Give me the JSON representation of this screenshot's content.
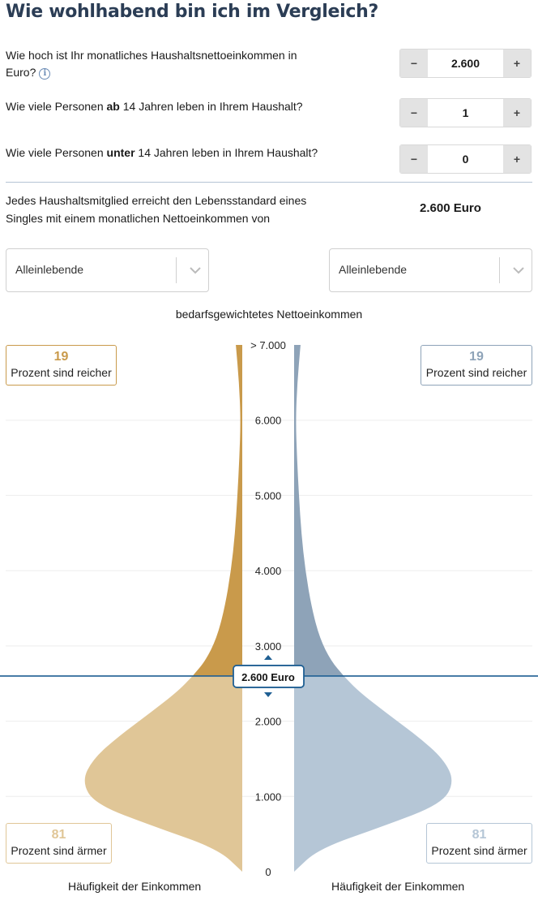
{
  "title": "Wie wohlhabend bin ich im Vergleich?",
  "questions": {
    "income": {
      "text": "Wie hoch ist Ihr monatliches Haushaltsnettoeinkommen in Euro?",
      "value": "2.600"
    },
    "adults": {
      "prefix": "Wie viele Personen ",
      "bold": "ab",
      "suffix": " 14 Jahren leben in Ihrem Haushalt?",
      "value": "1"
    },
    "children": {
      "prefix": "Wie viele Personen ",
      "bold": "unter",
      "suffix": " 14 Jahren leben in Ihrem Haushalt?",
      "value": "0"
    }
  },
  "stepper": {
    "minus": "−",
    "plus": "+"
  },
  "result": {
    "text": "Jedes Haushaltsmitglied erreicht den Lebensstandard eines Singles mit einem monatlichen Nettoeinkommen von",
    "value": "2.600 Euro"
  },
  "selects": {
    "left": "Alleinlebende",
    "right": "Alleinlebende"
  },
  "chart_title": "bedarfsgewichtetes Nettoeinkommen",
  "left_boxes": {
    "richer": {
      "num": "19",
      "text": "Prozent sind reicher"
    },
    "poorer": {
      "num": "81",
      "text": "Prozent sind ärmer"
    }
  },
  "right_boxes": {
    "richer": {
      "num": "19",
      "text": "Prozent sind reicher"
    },
    "poorer": {
      "num": "81",
      "text": "Prozent sind ärmer"
    }
  },
  "marker_label": "2.600 Euro",
  "bottom_labels": {
    "left": "Häufigkeit der Einkommen",
    "right": "Häufigkeit der Einkommen"
  },
  "colors": {
    "gold_dark": "#c99a4b",
    "gold_light": "#e0c697",
    "blue_dark": "#8ea3b8",
    "blue_light": "#b5c6d6",
    "marker_line": "#1f5f93",
    "title": "#2b3d55"
  },
  "chart_data": {
    "type": "area",
    "y_axis_ticks": [
      "0",
      "1.000",
      "2.000",
      "3.000",
      "4.000",
      "5.000",
      "6.000",
      "> 7.000"
    ],
    "ylim": [
      0,
      7000
    ],
    "marker_value": 2600,
    "density_profile": {
      "y": [
        0,
        300,
        600,
        900,
        1200,
        1500,
        1800,
        2100,
        2400,
        2600,
        2800,
        3100,
        3500,
        4000,
        4500,
        5000,
        5500,
        6000,
        6500,
        7000
      ],
      "width": [
        0,
        0.15,
        0.55,
        0.92,
        1.0,
        0.93,
        0.77,
        0.58,
        0.4,
        0.31,
        0.23,
        0.16,
        0.11,
        0.07,
        0.045,
        0.03,
        0.018,
        0.01,
        0.02,
        0.04
      ]
    }
  }
}
